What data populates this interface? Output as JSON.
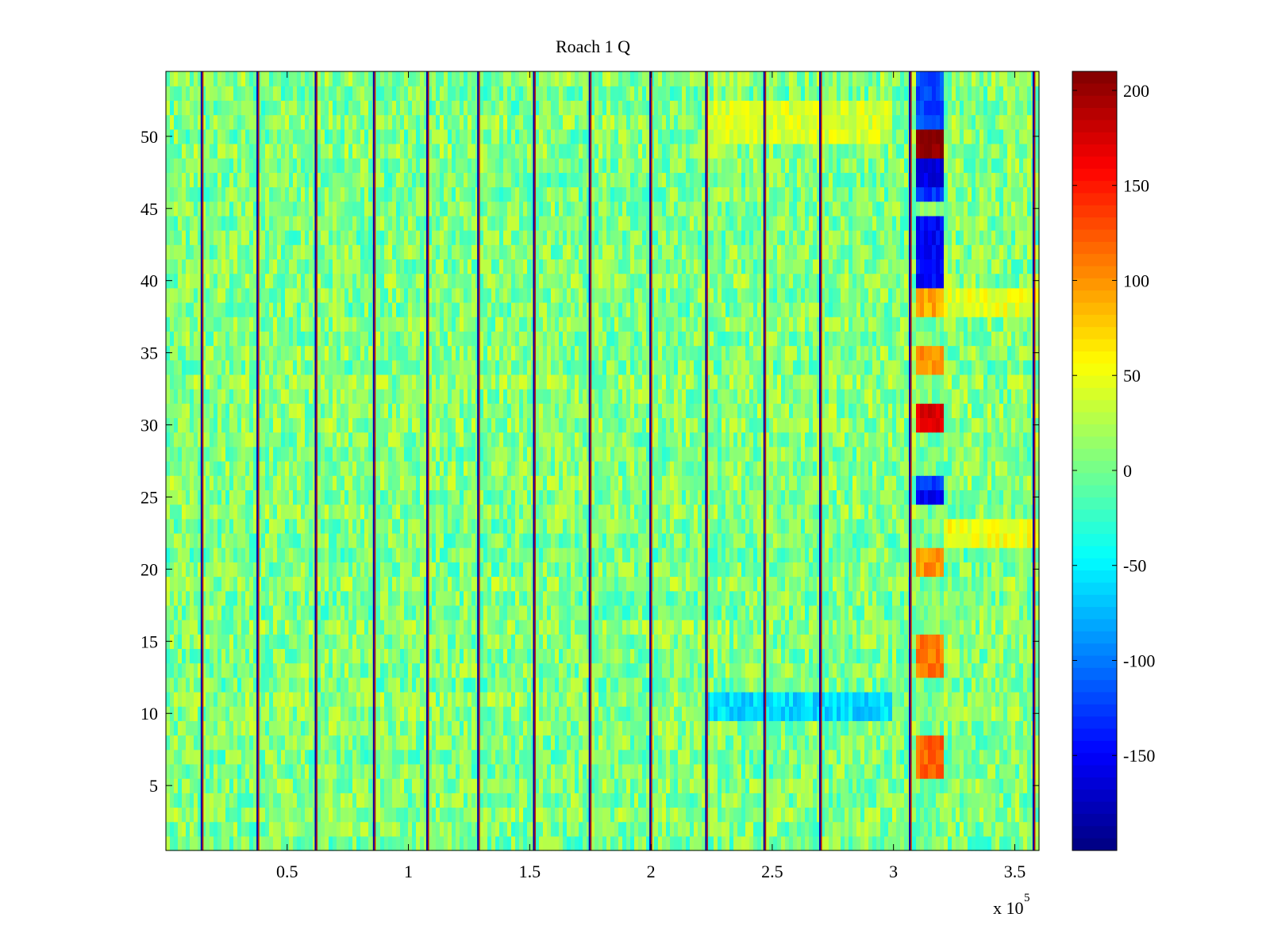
{
  "chart_data": {
    "type": "heatmap",
    "title": "Roach 1 Q",
    "xlabel": "",
    "ylabel": "",
    "x_multiplier_label": {
      "base": "x 10",
      "exponent": "5"
    },
    "xlim": [
      0,
      360000
    ],
    "ylim": [
      0.5,
      54.5
    ],
    "x_ticks": [
      {
        "value": 50000,
        "label": "0.5"
      },
      {
        "value": 100000,
        "label": "1"
      },
      {
        "value": 150000,
        "label": "1.5"
      },
      {
        "value": 200000,
        "label": "2"
      },
      {
        "value": 250000,
        "label": "2.5"
      },
      {
        "value": 300000,
        "label": "3"
      },
      {
        "value": 350000,
        "label": "3.5"
      }
    ],
    "y_ticks": [
      {
        "value": 5,
        "label": "5"
      },
      {
        "value": 10,
        "label": "10"
      },
      {
        "value": 15,
        "label": "15"
      },
      {
        "value": 20,
        "label": "20"
      },
      {
        "value": 25,
        "label": "25"
      },
      {
        "value": 30,
        "label": "30"
      },
      {
        "value": 35,
        "label": "35"
      },
      {
        "value": 40,
        "label": "40"
      },
      {
        "value": 45,
        "label": "45"
      },
      {
        "value": 50,
        "label": "50"
      }
    ],
    "rows": 54,
    "colorbar": {
      "colormap": "jet",
      "range": [
        -200,
        210
      ],
      "ticks": [
        {
          "value": -150,
          "label": "-150"
        },
        {
          "value": -100,
          "label": "-100"
        },
        {
          "value": -50,
          "label": "-50"
        },
        {
          "value": 0,
          "label": "0"
        },
        {
          "value": 50,
          "label": "50"
        },
        {
          "value": 100,
          "label": "100"
        },
        {
          "value": 150,
          "label": "150"
        },
        {
          "value": 200,
          "label": "200"
        }
      ]
    },
    "background_value_range": [
      -30,
      40
    ],
    "vertical_stripes_x": [
      15000,
      38000,
      62000,
      86000,
      108000,
      129000,
      152000,
      175000,
      200000,
      223000,
      247000,
      270000,
      307000,
      358000
    ],
    "anomaly_block": {
      "x_range": [
        310000,
        320000
      ],
      "row_values": [
        {
          "rows": [
            6,
            9
          ],
          "value": 120
        },
        {
          "rows": [
            13,
            16
          ],
          "value": 110
        },
        {
          "rows": [
            20,
            22
          ],
          "value": 100
        },
        {
          "rows": [
            25,
            26
          ],
          "value": -150
        },
        {
          "rows": [
            26,
            27
          ],
          "value": -120
        },
        {
          "rows": [
            30,
            32
          ],
          "value": 170
        },
        {
          "rows": [
            34,
            36
          ],
          "value": 100
        },
        {
          "rows": [
            38,
            40
          ],
          "value": 90
        },
        {
          "rows": [
            40,
            45
          ],
          "value": -150
        },
        {
          "rows": [
            46,
            47
          ],
          "value": -130
        },
        {
          "rows": [
            47,
            49
          ],
          "value": -160
        },
        {
          "rows": [
            49,
            51
          ],
          "value": 210
        },
        {
          "rows": [
            51,
            55
          ],
          "value": -120
        }
      ]
    },
    "regional_shifts": [
      {
        "x_range": [
          223000,
          300000
        ],
        "rows": [
          50,
          53
        ],
        "value": 40
      },
      {
        "x_range": [
          223000,
          300000
        ],
        "rows": [
          10,
          12
        ],
        "value": -60
      },
      {
        "x_range": [
          320000,
          360000
        ],
        "rows": [
          38,
          40
        ],
        "value": 45
      },
      {
        "x_range": [
          320000,
          360000
        ],
        "rows": [
          22,
          24
        ],
        "value": 50
      }
    ]
  }
}
